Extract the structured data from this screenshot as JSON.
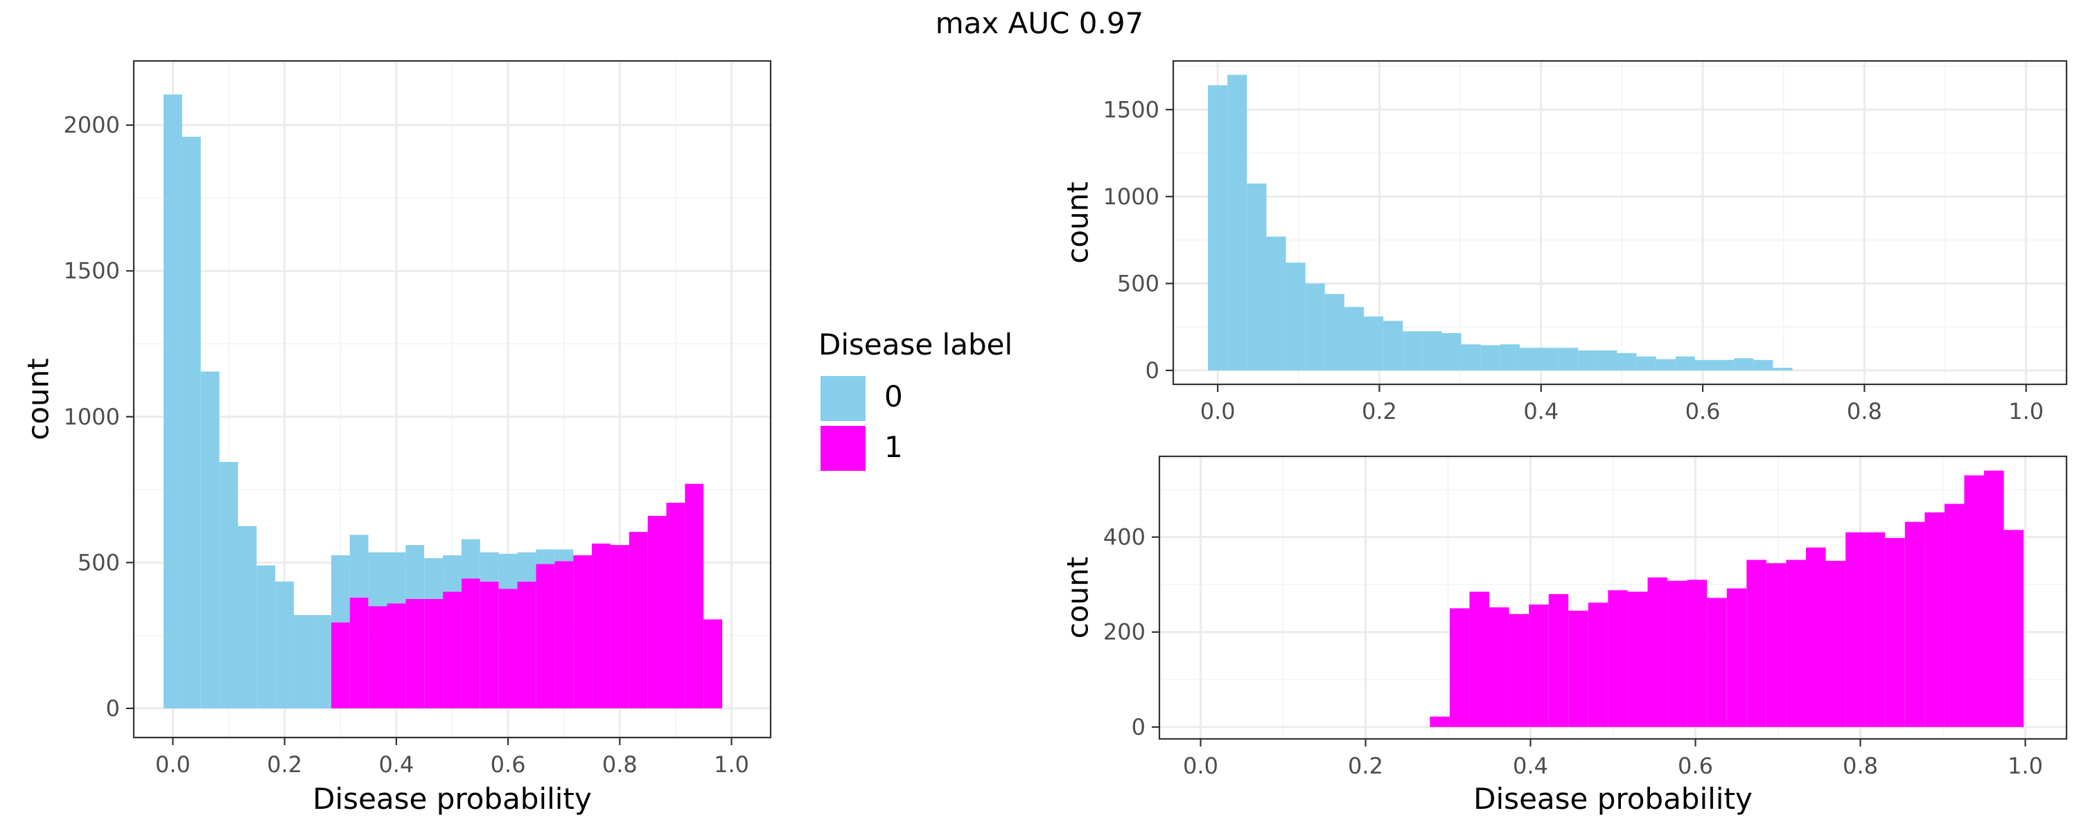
{
  "figure": {
    "title": "max AUC 0.97"
  },
  "legend": {
    "title": "Disease label",
    "items": [
      {
        "label": "0",
        "color": "#87CEEB"
      },
      {
        "label": "1",
        "color": "#FF00FF"
      }
    ]
  },
  "chart_data": [
    {
      "type": "bar",
      "subtype": "stacked-histogram",
      "panel": "left",
      "xlabel": "Disease probability",
      "ylabel": "count",
      "xlim": [
        -0.07,
        1.07
      ],
      "ylim": [
        -100,
        2220
      ],
      "x_ticks": [
        0.0,
        0.2,
        0.4,
        0.6,
        0.8,
        1.0
      ],
      "x_tick_labels": [
        "0.0",
        "0.2",
        "0.4",
        "0.6",
        "0.8",
        "1.0"
      ],
      "y_ticks": [
        0,
        500,
        1000,
        1500,
        2000
      ],
      "y_tick_labels": [
        "0",
        "500",
        "1000",
        "1500",
        "2000"
      ],
      "grid": true,
      "bin_width": 0.0333,
      "bin_centers": [
        0.0,
        0.0333,
        0.0667,
        0.1,
        0.1333,
        0.1667,
        0.2,
        0.2333,
        0.2667,
        0.3,
        0.3333,
        0.3667,
        0.4,
        0.4333,
        0.4667,
        0.5,
        0.5333,
        0.5667,
        0.6,
        0.6333,
        0.6667,
        0.7,
        0.7333,
        0.7667,
        0.8,
        0.8333,
        0.8667,
        0.9,
        0.9333,
        0.9667,
        1.0
      ],
      "series": [
        {
          "name": "1",
          "color": "#FF00FF",
          "values": [
            0,
            0,
            0,
            0,
            0,
            0,
            0,
            0,
            0,
            295,
            380,
            350,
            360,
            375,
            375,
            400,
            445,
            435,
            410,
            435,
            495,
            505,
            525,
            565,
            560,
            605,
            660,
            705,
            770,
            305,
            0
          ]
        },
        {
          "name": "0",
          "color": "#87CEEB",
          "values": [
            2105,
            1960,
            1155,
            845,
            625,
            490,
            435,
            320,
            320,
            230,
            215,
            185,
            175,
            185,
            140,
            125,
            135,
            100,
            120,
            100,
            50,
            40,
            0,
            0,
            0,
            0,
            0,
            0,
            0,
            0,
            0
          ]
        }
      ]
    },
    {
      "type": "bar",
      "subtype": "histogram",
      "panel": "top-right",
      "xlabel": "",
      "ylabel": "count",
      "xlim": [
        -0.055,
        1.05
      ],
      "ylim": [
        -80,
        1780
      ],
      "x_ticks": [
        0.0,
        0.2,
        0.4,
        0.6,
        0.8,
        1.0
      ],
      "x_tick_labels": [
        "0.0",
        "0.2",
        "0.4",
        "0.6",
        "0.8",
        "1.0"
      ],
      "y_ticks": [
        0,
        500,
        1000,
        1500
      ],
      "y_tick_labels": [
        "0",
        "500",
        "1000",
        "1500"
      ],
      "grid": true,
      "bin_width": 0.0241,
      "bin_centers": [
        0.0,
        0.0241,
        0.0482,
        0.0723,
        0.0964,
        0.1205,
        0.1446,
        0.1687,
        0.1928,
        0.2169,
        0.241,
        0.2651,
        0.2892,
        0.3133,
        0.3374,
        0.3615,
        0.3856,
        0.4097,
        0.4338,
        0.4579,
        0.482,
        0.5061,
        0.5302,
        0.5543,
        0.5784,
        0.6025,
        0.6266,
        0.6507,
        0.6748,
        0.6989
      ],
      "series": [
        {
          "name": "0",
          "color": "#87CEEB",
          "values": [
            1640,
            1700,
            1075,
            770,
            620,
            500,
            440,
            365,
            310,
            285,
            225,
            225,
            215,
            150,
            145,
            150,
            130,
            130,
            130,
            115,
            115,
            100,
            80,
            65,
            80,
            60,
            60,
            70,
            60,
            15
          ]
        }
      ]
    },
    {
      "type": "bar",
      "subtype": "histogram",
      "panel": "bottom-right",
      "xlabel": "Disease probability",
      "ylabel": "count",
      "xlim": [
        -0.05,
        1.05
      ],
      "ylim": [
        -25,
        570
      ],
      "x_ticks": [
        0.0,
        0.2,
        0.4,
        0.6,
        0.8,
        1.0
      ],
      "x_tick_labels": [
        "0.0",
        "0.2",
        "0.4",
        "0.6",
        "0.8",
        "1.0"
      ],
      "y_ticks": [
        0,
        200,
        400
      ],
      "y_tick_labels": [
        "0",
        "200",
        "400"
      ],
      "grid": true,
      "bin_width": 0.024,
      "bin_centers": [
        0.29,
        0.314,
        0.338,
        0.362,
        0.386,
        0.41,
        0.434,
        0.458,
        0.482,
        0.506,
        0.53,
        0.554,
        0.578,
        0.602,
        0.626,
        0.65,
        0.674,
        0.698,
        0.722,
        0.746,
        0.77,
        0.794,
        0.818,
        0.842,
        0.866,
        0.89,
        0.914,
        0.938,
        0.962,
        0.986
      ],
      "series": [
        {
          "name": "1",
          "color": "#FF00FF",
          "values": [
            22,
            250,
            285,
            252,
            238,
            258,
            280,
            245,
            262,
            288,
            285,
            315,
            308,
            310,
            272,
            292,
            352,
            345,
            352,
            378,
            350,
            410,
            410,
            398,
            432,
            452,
            470,
            530,
            540,
            415
          ]
        }
      ]
    }
  ]
}
